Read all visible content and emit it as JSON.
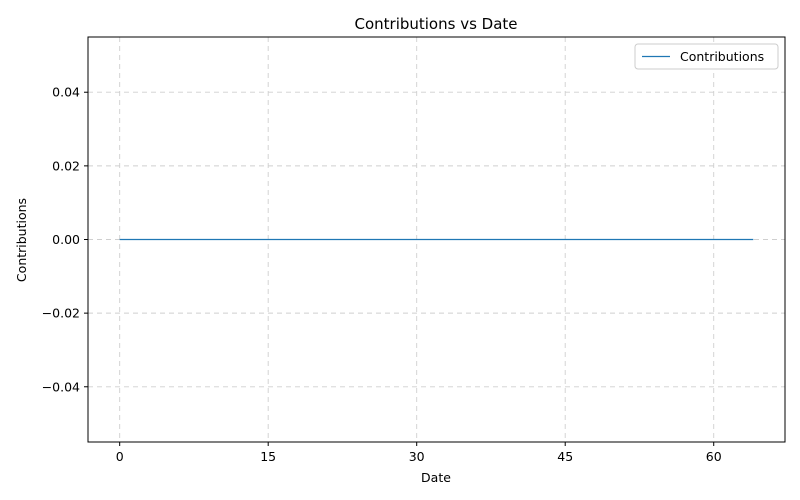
{
  "chart_data": {
    "type": "line",
    "title": "Contributions vs Date",
    "xlabel": "Date",
    "ylabel": "Contributions",
    "xlim": [
      -3.2,
      67.2
    ],
    "ylim": [
      -0.055,
      0.055
    ],
    "xticks": [
      0,
      15,
      30,
      45,
      60
    ],
    "xtick_labels": [
      "0",
      "15",
      "30",
      "45",
      "60"
    ],
    "yticks": [
      -0.04,
      -0.02,
      0.0,
      0.02,
      0.04
    ],
    "ytick_labels": [
      "−0.04",
      "−0.02",
      "0.00",
      "0.02",
      "0.04"
    ],
    "grid": true,
    "legend": {
      "placement": "top-right",
      "entries": [
        "Contributions"
      ]
    },
    "series": [
      {
        "name": "Contributions",
        "color": "#1f77b4",
        "x": [
          0,
          64
        ],
        "y": [
          0,
          0
        ]
      }
    ]
  }
}
